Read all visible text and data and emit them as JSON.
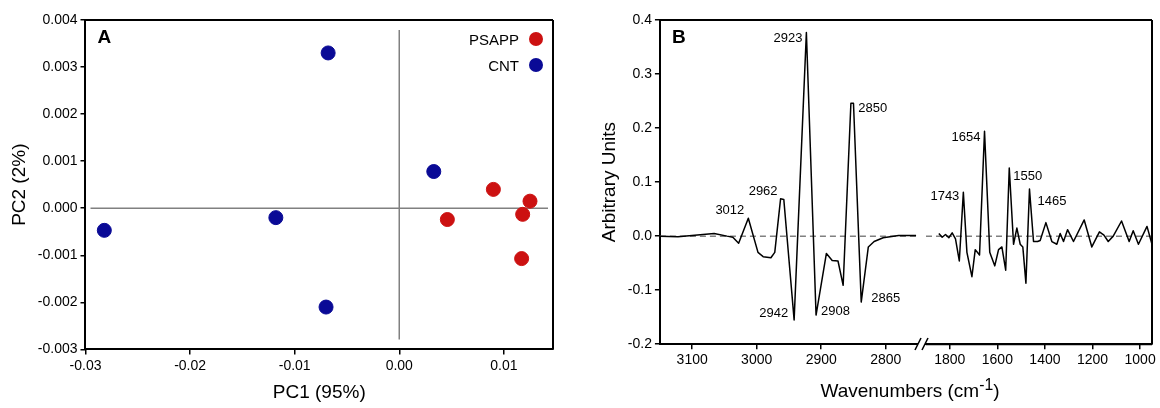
{
  "chart_data": [
    {
      "type": "scatter",
      "xlabel": "PC1 (95%)",
      "ylabel": "PC2 (2%)",
      "annotations": [
        "A"
      ],
      "marker": "circle",
      "legend": "top right",
      "grid": false,
      "xlim": [
        -0.03,
        0.0147
      ],
      "xticks": [
        -0.03,
        -0.02,
        -0.01,
        {
          "value": 0,
          "label": "0.00"
        },
        0.01
      ],
      "ylim": [
        -0.003,
        0.004
      ],
      "yticks": [
        -0.003,
        -0.002,
        -0.001,
        {
          "value": 0,
          "label": "0.000"
        },
        0.001,
        0.002,
        0.003,
        0.004
      ],
      "ref_lines": [
        {
          "axis": "x",
          "value": 0,
          "color": "#808080"
        },
        {
          "axis": "y",
          "value": 0,
          "color": "#808080"
        }
      ],
      "series": [
        {
          "name": "PSAPP",
          "color": "#cc1111",
          "x": [
            0.009,
            0.0046,
            0.0125,
            0.0118,
            0.0117
          ],
          "values": [
            0.0004,
            -0.00024,
            0.00015,
            -0.00013,
            -0.00107
          ]
        },
        {
          "name": "CNT",
          "color": "#0a0a96",
          "x": [
            -0.0282,
            -0.0068,
            -0.0118,
            -0.007,
            0.0033
          ],
          "values": [
            -0.00047,
            0.0033,
            -0.0002,
            -0.0021,
            0.00078
          ]
        }
      ]
    },
    {
      "type": "line",
      "xlabel": "Wavenumbers (cm$^{-1}$)",
      "ylabel": "Arbitrary Units",
      "marker": "none",
      "line_style": "solid",
      "grid": false,
      "xlim": [
        3150,
        2750
      ],
      "xticks": [
        3100,
        3000,
        2900,
        2800
      ],
      "ylim": [
        -0.2,
        0.4
      ],
      "yticks": [
        -0.2,
        -0.1,
        {
          "value": 0,
          "label": "0.0"
        },
        0.1,
        0.2,
        0.3,
        0.4
      ],
      "ref_lines": [
        {
          "axis": "y",
          "value": 0,
          "color": "#808080",
          "line_style": "dashed"
        }
      ],
      "annotations": [
        "B",
        {
          "text": "3012",
          "x": 3013,
          "y": 0.033
        },
        {
          "text": "2962",
          "x": 2963,
          "y": 0.069
        },
        {
          "text": "2923",
          "x": 2923,
          "y": 0.377
        },
        {
          "text": "2850",
          "x": 2852,
          "y": 0.246
        },
        {
          "text": "2942",
          "x": 2942,
          "y": -0.155
        },
        {
          "text": "2908",
          "x": 2908,
          "y": -0.146
        },
        {
          "text": "2865",
          "x": 2838,
          "y": -0.122
        }
      ],
      "series": [
        {
          "color": "#000000",
          "x": [
            3150,
            3122,
            3066,
            3046,
            3037,
            3028,
            3013,
            2998,
            2990,
            2978,
            2972,
            2963,
            2958,
            2942,
            2923,
            2908,
            2892,
            2883,
            2874,
            2866,
            2854,
            2850,
            2838,
            2827,
            2818,
            2804,
            2780,
            2753
          ],
          "values": [
            0,
            -0.001,
            0.005,
            0,
            -0.002,
            -0.013,
            0.033,
            -0.03,
            -0.038,
            -0.04,
            -0.03,
            0.069,
            0.068,
            -0.155,
            0.377,
            -0.146,
            -0.032,
            -0.045,
            -0.046,
            -0.091,
            0.246,
            0.246,
            -0.122,
            -0.02,
            -0.01,
            -0.003,
            0.001,
            0.001
          ]
        }
      ]
    },
    {
      "type": "line",
      "marker": "none",
      "line_style": "solid",
      "grid": false,
      "tick_labels": "x",
      "xlim": [
        1900,
        950
      ],
      "xticks": [
        1800,
        1600,
        1400,
        1200,
        1000
      ],
      "ylim": [
        -0.2,
        0.4
      ],
      "ref_lines": [
        {
          "axis": "y",
          "value": 0,
          "color": "#808080",
          "line_style": "dashed"
        }
      ],
      "annotations": [
        {
          "text": "1743",
          "x": 1743,
          "y": 0.081
        },
        {
          "text": "1654",
          "x": 1654,
          "y": 0.194
        },
        {
          "text": "1550",
          "x": 1550,
          "y": 0.126
        },
        {
          "text": "1465",
          "x": 1465,
          "y": 0.087
        }
      ],
      "series": [
        {
          "color": "#000000",
          "x": [
            1846,
            1832,
            1818,
            1804,
            1790,
            1776,
            1760,
            1743,
            1728,
            1707,
            1693,
            1675,
            1654,
            1632,
            1611,
            1595,
            1581,
            1565,
            1550,
            1532,
            1518,
            1504,
            1493,
            1480,
            1465,
            1448,
            1431,
            1420,
            1396,
            1371,
            1350,
            1336,
            1322,
            1305,
            1280,
            1235,
            1203,
            1171,
            1152,
            1134,
            1113,
            1078,
            1046,
            1029,
            1007,
            971,
            950
          ],
          "values": [
            0.005,
            -0.002,
            0.003,
            -0.003,
            0.006,
            -0.005,
            -0.046,
            0.081,
            -0.03,
            -0.075,
            -0.025,
            -0.035,
            0.194,
            -0.03,
            -0.055,
            -0.025,
            -0.02,
            -0.063,
            0.126,
            -0.015,
            0.015,
            -0.015,
            -0.02,
            -0.087,
            0.087,
            -0.01,
            -0.01,
            -0.008,
            0.025,
            -0.01,
            -0.015,
            0.005,
            -0.01,
            0.012,
            -0.01,
            0.03,
            -0.02,
            0.008,
            0.002,
            -0.01,
            0,
            0.028,
            -0.01,
            0.01,
            -0.015,
            0.018,
            -0.015
          ]
        }
      ]
    }
  ]
}
